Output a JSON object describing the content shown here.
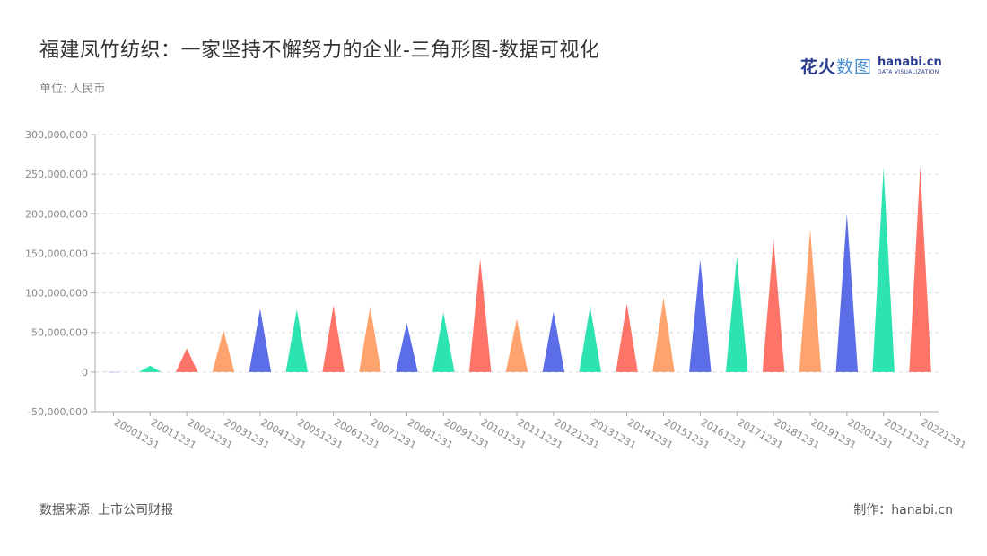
{
  "title": "福建凤竹纺织：一家坚持不懈努力的企业-三角形图-数据可视化",
  "unit": "单位: 人民币",
  "source": "数据来源: 上市公司财报",
  "credit": "制作：hanabi.cn",
  "logo": {
    "cn": "花火",
    "cn_light": "数图",
    "en": "hanabi.cn",
    "en_sub": "DATA VISUALIZATION"
  },
  "colors": [
    "#5b6ee8",
    "#2de3b0",
    "#ff7468",
    "#ffa36e"
  ],
  "chart_data": {
    "type": "bar",
    "mark": "triangle",
    "categories": [
      "20001231",
      "20011231",
      "20021231",
      "20031231",
      "20041231",
      "20051231",
      "20061231",
      "20071231",
      "20081231",
      "20091231",
      "20101231",
      "20111231",
      "20121231",
      "20131231",
      "20141231",
      "20151231",
      "20161231",
      "20171231",
      "20181231",
      "20191231",
      "20201231",
      "20211231",
      "20221231"
    ],
    "values": [
      -500000,
      8000000,
      30000000,
      53000000,
      80000000,
      79000000,
      84000000,
      82000000,
      62000000,
      75000000,
      143000000,
      67000000,
      76000000,
      83000000,
      86000000,
      94000000,
      142000000,
      146000000,
      168000000,
      181000000,
      200000000,
      258000000,
      260000000
    ],
    "ylim": [
      -50000000,
      300000000
    ],
    "yticks": [
      -50000000,
      0,
      50000000,
      100000000,
      150000000,
      200000000,
      250000000,
      300000000
    ],
    "ytick_labels": [
      "-50,000,000",
      "0",
      "50,000,000",
      "100,000,000",
      "150,000,000",
      "200,000,000",
      "250,000,000",
      "300,000,000"
    ],
    "grid": true,
    "xlabel": "",
    "ylabel": ""
  }
}
